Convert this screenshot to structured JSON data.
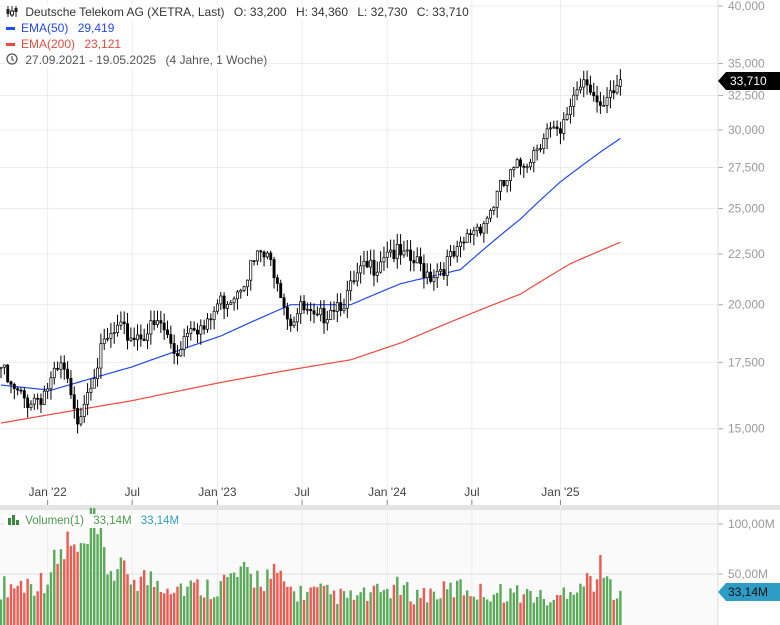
{
  "header": {
    "title": "Deutsche Telekom AG (XETRA, Last)",
    "open": "O: 33,200",
    "high": "H: 34,360",
    "low": "L: 32,730",
    "close": "C: 33,710",
    "ema50_label": "EMA(50)",
    "ema50_value": "29,419",
    "ema200_label": "EMA(200)",
    "ema200_value": "23,121",
    "date_range": "27.09.2021 - 19.05.2025",
    "duration": "(4 Jahre, 1 Woche)",
    "current_price": "33,710"
  },
  "volume_panel": {
    "label": "Volumen(1)",
    "value_green": "33,14M",
    "value_blue": "33,14M",
    "current_volume": "33,14M",
    "yticks": [
      "100,00M",
      "50,00M"
    ]
  },
  "colors": {
    "ema50": "#2149f5",
    "ema200": "#f0483c",
    "vol_up": "#5aaa5a",
    "vol_down": "#ee5a50",
    "tag": "#2d9dc6"
  },
  "chart_data": {
    "type": "candlestick",
    "interval": "weekly",
    "yscale": "log",
    "ylim": [
      13000,
      40000
    ],
    "yticks": [
      15000,
      17500,
      20000,
      22500,
      25000,
      27500,
      30000,
      32500,
      35000,
      40000
    ],
    "ytick_labels": [
      "15,000",
      "17,500",
      "20,000",
      "22,500",
      "25,000",
      "27,500",
      "30,000",
      "32,500",
      "35,000",
      "40,000"
    ],
    "xticks": [
      {
        "week": 14,
        "label": "Jan '22"
      },
      {
        "week": 39.4,
        "label": "Jul"
      },
      {
        "week": 65,
        "label": "Jan '23"
      },
      {
        "week": 90.4,
        "label": "Jul"
      },
      {
        "week": 116,
        "label": "Jan '24"
      },
      {
        "week": 141.4,
        "label": "Jul"
      },
      {
        "week": 168,
        "label": "Jan '25"
      }
    ],
    "weeks": 186,
    "close_anchors": [
      [
        0,
        17.3
      ],
      [
        3,
        16.4
      ],
      [
        7.5,
        16.0
      ],
      [
        12,
        16.2
      ],
      [
        15,
        16.7
      ],
      [
        18.6,
        17.3
      ],
      [
        22.5,
        15.2
      ],
      [
        27,
        16.9
      ],
      [
        31.5,
        18.3
      ],
      [
        35,
        18.8
      ],
      [
        39.4,
        18.6
      ],
      [
        43.5,
        18.8
      ],
      [
        48,
        19.1
      ],
      [
        52.5,
        17.8
      ],
      [
        57,
        19.3
      ],
      [
        61.5,
        18.8
      ],
      [
        65,
        20.0
      ],
      [
        69.6,
        20.5
      ],
      [
        73.5,
        21.5
      ],
      [
        78,
        22.5
      ],
      [
        82.5,
        21.7
      ],
      [
        86.5,
        19.3
      ],
      [
        90.4,
        19.8
      ],
      [
        94.6,
        19.1
      ],
      [
        99,
        20.0
      ],
      [
        103.6,
        20.3
      ],
      [
        108,
        21.5
      ],
      [
        112.6,
        22.0
      ],
      [
        116,
        22.9
      ],
      [
        120,
        22.3
      ],
      [
        124.6,
        22.0
      ],
      [
        129,
        21.5
      ],
      [
        133.6,
        22.0
      ],
      [
        137.5,
        22.5
      ],
      [
        141.4,
        23.8
      ],
      [
        145.6,
        24.4
      ],
      [
        150,
        26.1
      ],
      [
        154.6,
        27.3
      ],
      [
        159,
        28.3
      ],
      [
        163.6,
        30.0
      ],
      [
        168,
        29.4
      ],
      [
        171.7,
        32.5
      ],
      [
        175.6,
        34.3
      ],
      [
        180,
        31.0
      ],
      [
        183,
        32.2
      ],
      [
        186,
        33.71
      ]
    ],
    "ema50_anchors": [
      [
        0,
        16.6
      ],
      [
        15,
        16.4
      ],
      [
        39,
        17.3
      ],
      [
        66,
        18.6
      ],
      [
        87,
        20.0
      ],
      [
        105,
        20.0
      ],
      [
        120,
        21.0
      ],
      [
        138,
        21.7
      ],
      [
        156,
        24.4
      ],
      [
        168,
        26.6
      ],
      [
        180,
        28.5
      ],
      [
        186,
        29.419
      ]
    ],
    "ema200_anchors": [
      [
        0,
        15.2
      ],
      [
        39,
        16.0
      ],
      [
        66,
        16.7
      ],
      [
        87,
        17.2
      ],
      [
        105,
        17.6
      ],
      [
        120,
        18.3
      ],
      [
        138,
        19.4
      ],
      [
        156,
        20.5
      ],
      [
        171,
        22.0
      ],
      [
        186,
        23.121
      ]
    ],
    "volume_anchors_millions": [
      [
        0,
        35
      ],
      [
        6,
        38
      ],
      [
        12,
        40
      ],
      [
        16,
        55
      ],
      [
        20,
        75
      ],
      [
        24,
        62
      ],
      [
        28,
        90
      ],
      [
        32,
        55
      ],
      [
        36,
        48
      ],
      [
        40,
        45
      ],
      [
        48,
        40
      ],
      [
        56,
        35
      ],
      [
        64,
        35
      ],
      [
        70,
        45
      ],
      [
        76,
        45
      ],
      [
        82,
        45
      ],
      [
        88,
        30
      ],
      [
        96,
        30
      ],
      [
        104,
        25
      ],
      [
        112,
        28
      ],
      [
        118,
        35
      ],
      [
        124,
        28
      ],
      [
        132,
        30
      ],
      [
        138,
        35
      ],
      [
        144,
        30
      ],
      [
        152,
        30
      ],
      [
        160,
        28
      ],
      [
        166,
        20
      ],
      [
        170,
        35
      ],
      [
        176,
        40
      ],
      [
        180,
        50
      ],
      [
        183,
        35
      ],
      [
        186,
        33.14
      ]
    ]
  }
}
